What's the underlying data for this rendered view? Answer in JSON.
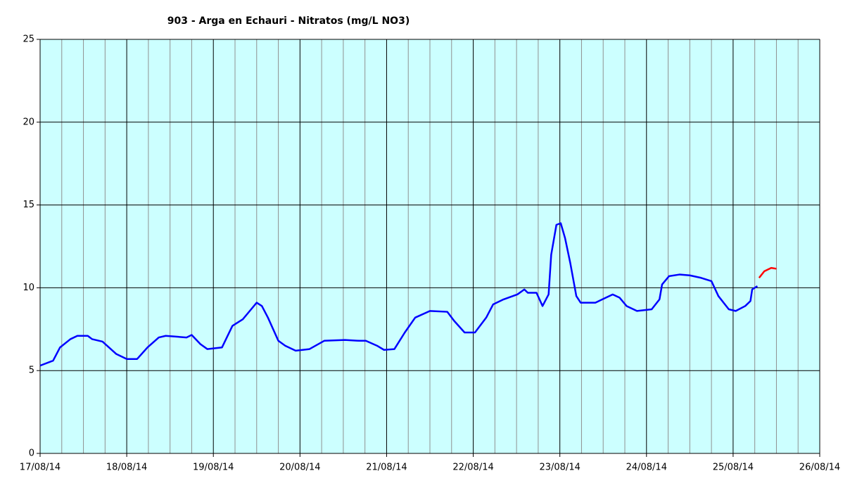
{
  "chart_data": {
    "type": "line",
    "title": "903 - Arga en Echauri - Nitratos (mg/L NO3)",
    "xlim": [
      0,
      9
    ],
    "xticks": [
      {
        "value": 0,
        "label": "17/08/14"
      },
      {
        "value": 1,
        "label": "18/08/14"
      },
      {
        "value": 2,
        "label": "19/08/14"
      },
      {
        "value": 3,
        "label": "20/08/14"
      },
      {
        "value": 4,
        "label": "21/08/14"
      },
      {
        "value": 5,
        "label": "22/08/14"
      },
      {
        "value": 6,
        "label": "23/08/14"
      },
      {
        "value": 7,
        "label": "24/08/14"
      },
      {
        "value": 8,
        "label": "25/08/14"
      },
      {
        "value": 9,
        "label": "26/08/14"
      }
    ],
    "ylim": [
      0,
      25
    ],
    "yticks": [
      0,
      5,
      10,
      15,
      20,
      25
    ],
    "grid": true,
    "series": [
      {
        "color": "#0000ff",
        "x": [
          0,
          0.15,
          0.23,
          0.35,
          0.43,
          0.55,
          0.6,
          0.72,
          0.88,
          1.0,
          1.12,
          1.24,
          1.37,
          1.45,
          1.57,
          1.69,
          1.75,
          1.85,
          1.93,
          2.1,
          2.22,
          2.34,
          2.42,
          2.5,
          2.56,
          2.63,
          2.75,
          2.83,
          2.95,
          3.11,
          3.28,
          3.52,
          3.68,
          3.76,
          3.89,
          3.97,
          4.09,
          4.21,
          4.33,
          4.5,
          4.7,
          4.78,
          4.9,
          5.02,
          5.15,
          5.23,
          5.35,
          5.51,
          5.59,
          5.63,
          5.73,
          5.8,
          5.87,
          5.9,
          5.96,
          6.01,
          6.06,
          6.12,
          6.19,
          6.24,
          6.41,
          6.49,
          6.61,
          6.69,
          6.77,
          6.89,
          7.06,
          7.15,
          7.18,
          7.26,
          7.38,
          7.5,
          7.63,
          7.75,
          7.83,
          7.95,
          8.03,
          8.14,
          8.2,
          8.22,
          8.28
        ],
        "values": [
          5.3,
          5.6,
          6.4,
          6.9,
          7.1,
          7.1,
          6.9,
          6.75,
          6.0,
          5.7,
          5.7,
          6.4,
          7.0,
          7.1,
          7.05,
          7.0,
          7.15,
          6.6,
          6.3,
          6.4,
          7.7,
          8.1,
          8.6,
          9.1,
          8.9,
          8.2,
          6.8,
          6.5,
          6.2,
          6.3,
          6.8,
          6.85,
          6.8,
          6.8,
          6.5,
          6.25,
          6.3,
          7.3,
          8.2,
          8.6,
          8.55,
          8.0,
          7.3,
          7.3,
          8.2,
          9.0,
          9.3,
          9.6,
          9.9,
          9.7,
          9.7,
          8.9,
          9.6,
          12.0,
          13.8,
          13.9,
          13.0,
          11.5,
          9.5,
          9.1,
          9.1,
          9.3,
          9.6,
          9.4,
          8.9,
          8.6,
          8.7,
          9.3,
          10.2,
          10.7,
          10.8,
          10.75,
          10.6,
          10.4,
          9.5,
          8.7,
          8.6,
          8.9,
          9.2,
          9.9,
          10.1
        ]
      },
      {
        "color": "#ff0000",
        "x": [
          8.3,
          8.36,
          8.44,
          8.5
        ],
        "values": [
          10.6,
          11.0,
          11.2,
          11.15
        ]
      }
    ]
  }
}
